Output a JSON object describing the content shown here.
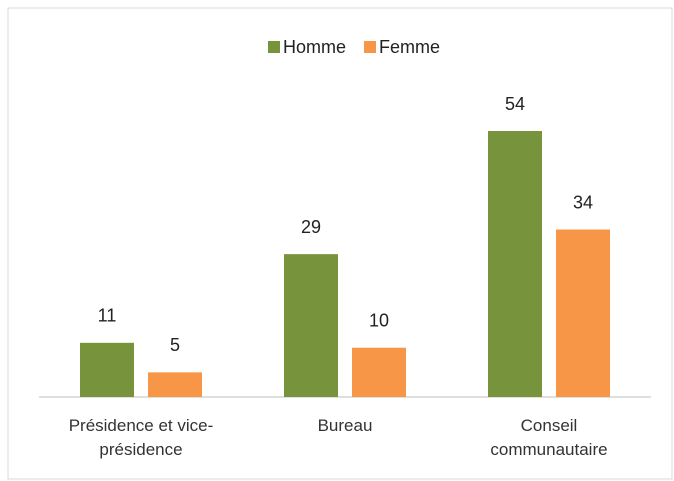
{
  "chart_data": {
    "type": "bar",
    "categories": [
      "Présidence et vice-\nprésidence",
      "Bureau",
      "Conseil\ncommunautaire"
    ],
    "series": [
      {
        "name": "Homme",
        "color": "#77933c",
        "values": [
          11,
          29,
          54
        ]
      },
      {
        "name": "Femme",
        "color": "#f79646",
        "values": [
          5,
          10,
          34
        ]
      }
    ],
    "legend": "top"
  }
}
